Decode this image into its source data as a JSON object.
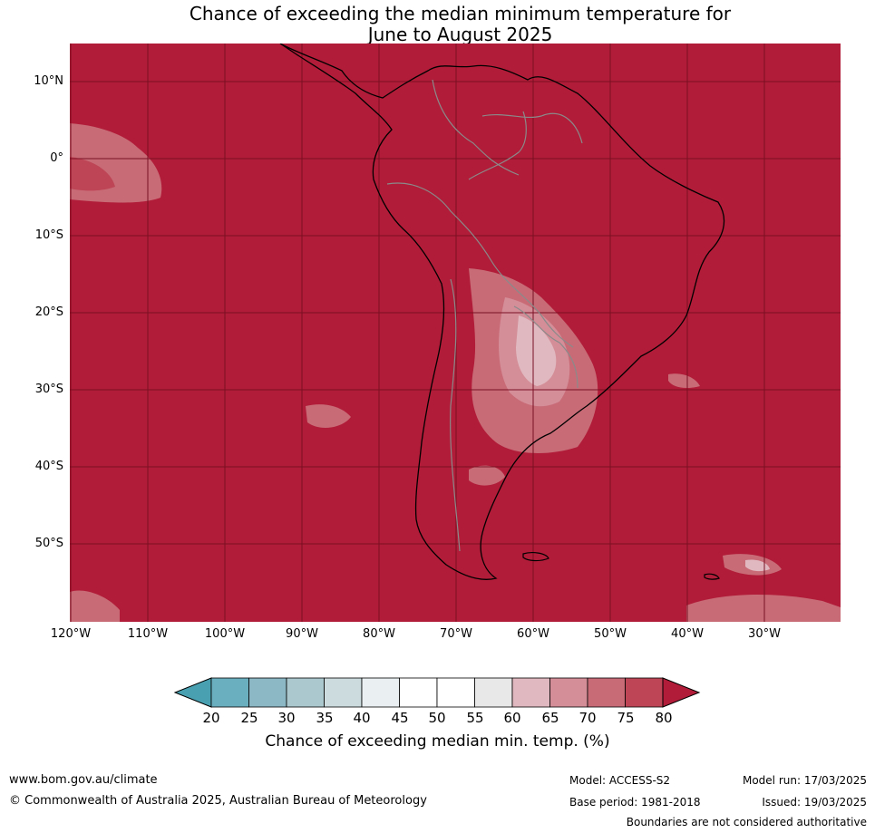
{
  "title": {
    "line1": "Chance of exceeding the median minimum temperature for",
    "line2": "June to August 2025"
  },
  "map": {
    "lat_labels": [
      "10°N",
      "0°",
      "10°S",
      "20°S",
      "30°S",
      "40°S",
      "50°S"
    ],
    "lon_labels": [
      "120°W",
      "110°W",
      "100°W",
      "90°W",
      "80°W",
      "70°W",
      "60°W",
      "50°W",
      "40°W",
      "30°W"
    ],
    "colors": {
      "ocean_fill": "#b11c38",
      "grid_line": "#7a1024",
      "coast_line": "#000000",
      "border_line": "#8a8a8a"
    }
  },
  "colorbar": {
    "ticks": [
      "20",
      "25",
      "30",
      "35",
      "40",
      "45",
      "50",
      "55",
      "60",
      "65",
      "70",
      "75",
      "80"
    ],
    "colors": [
      "#48a0b0",
      "#6aafc0",
      "#8cb8c6",
      "#abc8ce",
      "#cbdbde",
      "#eaf0f1",
      "#ffffff",
      "#ffffff",
      "#e8e8e8",
      "#e0b8bf",
      "#d48e98",
      "#c86b77",
      "#bd4555",
      "#b11c38"
    ],
    "label": "Chance of exceeding median min. temp. (%)"
  },
  "footer": {
    "website": "www.bom.gov.au/climate",
    "copyright": "© Commonwealth of Australia 2025, Australian Bureau of Meteorology",
    "model": "Model: ACCESS-S2",
    "base_period": "Base period: 1981-2018",
    "model_run": "Model run: 17/03/2025",
    "issued": "Issued: 19/03/2025",
    "disclaimer": "Boundaries are not considered authoritative"
  }
}
